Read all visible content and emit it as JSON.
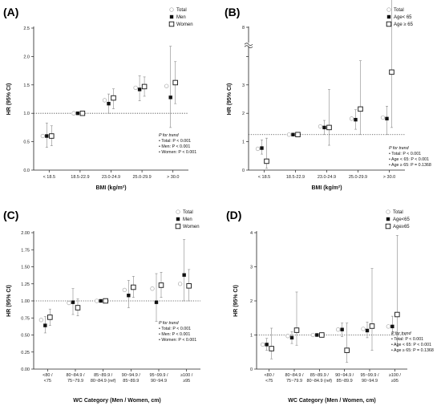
{
  "chart_data": [
    {
      "panel": "(A)",
      "type": "scatter",
      "ylabel": "HR (95% CI)",
      "xlabel": "BMI (kg/m²)",
      "ylim": [
        0,
        2.5
      ],
      "yticks": [
        "0.0",
        "0.5",
        "1.0",
        "1.5",
        "2.0",
        "2.5"
      ],
      "axis_break": false,
      "categories": [
        "< 18.5",
        "18.5-22.9",
        "23.0-24.9",
        "25.0-29.9",
        "> 30.0"
      ],
      "reference_line": 1.0,
      "legend": [
        "Total",
        "Men",
        "Women"
      ],
      "series": [
        {
          "name": "Total",
          "marker": "open-circle",
          "values": [
            0.6,
            1.0,
            1.23,
            1.45,
            1.48
          ],
          "lower": [
            null,
            null,
            null,
            null,
            null
          ],
          "upper": [
            null,
            null,
            null,
            null,
            null
          ]
        },
        {
          "name": "Men",
          "marker": "filled-square",
          "values": [
            0.6,
            1.0,
            1.17,
            1.42,
            1.28
          ],
          "lower": [
            0.4,
            null,
            1.0,
            1.22,
            0.75
          ],
          "upper": [
            0.83,
            null,
            1.34,
            1.66,
            2.18
          ]
        },
        {
          "name": "Women",
          "marker": "open-square",
          "values": [
            0.6,
            1.0,
            1.27,
            1.47,
            1.54
          ],
          "lower": [
            0.43,
            null,
            1.08,
            1.3,
            1.17
          ],
          "upper": [
            0.78,
            null,
            1.43,
            1.64,
            1.91
          ]
        }
      ],
      "annotation": {
        "title": "P for trend",
        "lines": [
          "• Total: P < 0.001",
          "• Men: P < 0.001",
          "• Women: P < 0.001"
        ]
      }
    },
    {
      "panel": "(B)",
      "type": "scatter",
      "ylabel": "HR (95% CI)",
      "xlabel": "BMI (kg/m²)",
      "ylim": [
        0,
        4
      ],
      "yticks": [
        "0",
        "1",
        "2",
        "3",
        "",
        "8"
      ],
      "axis_break": true,
      "categories": [
        "< 18.5",
        "18.5-22.9",
        "23.0-24.9",
        "25.0-29.9",
        "> 30.0"
      ],
      "reference_line": 1.0,
      "legend": [
        "Total",
        "Age< 65",
        "Age ≥ 65"
      ],
      "series": [
        {
          "name": "Total",
          "marker": "open-circle",
          "values": [
            0.6,
            1.0,
            1.23,
            1.45,
            1.48
          ],
          "lower": [
            null,
            null,
            null,
            null,
            null
          ],
          "upper": [
            null,
            null,
            null,
            null,
            null
          ]
        },
        {
          "name": "Age< 65",
          "marker": "filled-square",
          "values": [
            0.62,
            1.0,
            1.2,
            1.42,
            1.45
          ],
          "lower": [
            0.45,
            null,
            1.0,
            1.15,
            1.0
          ],
          "upper": [
            0.85,
            null,
            1.4,
            1.7,
            1.8
          ]
        },
        {
          "name": "Age ≥ 65",
          "marker": "open-square",
          "values": [
            0.25,
            1.0,
            1.2,
            1.72,
            2.76
          ],
          "lower": [
            0.05,
            null,
            0.7,
            1.0,
            1.2
          ],
          "upper": [
            0.9,
            null,
            2.27,
            3.08,
            5.0
          ]
        }
      ],
      "annotation": {
        "title": "P for trend",
        "lines": [
          "• Total: P < 0.001",
          "• Age < 65: P < 0.001",
          "• Age ≥ 65: P = 0.1368"
        ]
      }
    },
    {
      "panel": "(C)",
      "type": "scatter",
      "ylabel": "HR (95% CI)",
      "xlabel": "WC Category (Men / Women, cm)",
      "ylim": [
        0,
        2.0
      ],
      "yticks": [
        "0.00",
        "0.25",
        "0.50",
        "0.75",
        "1.00",
        "1.25",
        "1.50",
        "1.75",
        "2.00"
      ],
      "axis_break": false,
      "categories": [
        "<80 / <75",
        "80~84.9 / 75~79.9",
        "85~89.9 / 80~84.9 (ref)",
        "90~94.9 / 85~89.9",
        "95~99.9 / 90~94.9",
        "≥100 / ≥95"
      ],
      "reference_line": 1.0,
      "legend": [
        "Total",
        "Men",
        "Women"
      ],
      "series": [
        {
          "name": "Total",
          "marker": "open-circle",
          "values": [
            0.72,
            0.97,
            1.0,
            1.16,
            1.18,
            1.25
          ],
          "lower": [
            null,
            null,
            null,
            null,
            null,
            null
          ],
          "upper": [
            null,
            null,
            null,
            null,
            null,
            null
          ]
        },
        {
          "name": "Men",
          "marker": "filled-square",
          "values": [
            0.64,
            0.98,
            1.0,
            1.08,
            0.98,
            1.38
          ],
          "lower": [
            0.53,
            0.8,
            null,
            0.9,
            0.7,
            1.0
          ],
          "upper": [
            0.77,
            1.18,
            null,
            1.3,
            1.4,
            1.9
          ]
        },
        {
          "name": "Women",
          "marker": "open-square",
          "values": [
            0.76,
            0.9,
            1.0,
            1.2,
            1.23,
            1.22
          ],
          "lower": [
            0.64,
            0.78,
            null,
            1.05,
            1.05,
            1.0
          ],
          "upper": [
            0.88,
            1.03,
            null,
            1.36,
            1.42,
            1.46
          ]
        }
      ],
      "annotation": {
        "title": "P for trend",
        "lines": [
          "• Total: P < 0.001",
          "• Men: P < 0.001",
          "• Women: P < 0.001"
        ]
      }
    },
    {
      "panel": "(D)",
      "type": "scatter",
      "ylabel": "HR (95% CI)",
      "xlabel": "WC Category (Men / Women, cm)",
      "ylim": [
        0,
        4
      ],
      "yticks": [
        "0",
        "1",
        "2",
        "3",
        "4"
      ],
      "axis_break": false,
      "categories": [
        "<80 / <75",
        "80~84.9 / 75~79.9",
        "85~89.9 / 80~84.9 (ref)",
        "90~94.9 / 85~89.9",
        "95~99.9 / 90~94.9",
        "≥100 / ≥95"
      ],
      "reference_line": 1.0,
      "legend": [
        "Total",
        "Age<65",
        "Age≥65"
      ],
      "series": [
        {
          "name": "Total",
          "marker": "open-circle",
          "values": [
            0.72,
            0.97,
            1.0,
            1.16,
            1.18,
            1.25
          ],
          "lower": [
            null,
            null,
            null,
            null,
            null,
            null
          ],
          "upper": [
            null,
            null,
            null,
            null,
            null,
            null
          ]
        },
        {
          "name": "Age<65",
          "marker": "filled-square",
          "values": [
            0.72,
            0.92,
            1.0,
            1.16,
            1.13,
            1.25
          ],
          "lower": [
            0.55,
            0.75,
            null,
            0.95,
            0.92,
            1.0
          ],
          "upper": [
            0.9,
            1.1,
            null,
            1.35,
            1.38,
            1.55
          ]
        },
        {
          "name": "Age≥65",
          "marker": "open-square",
          "values": [
            0.6,
            1.14,
            1.0,
            0.55,
            1.26,
            1.6
          ],
          "lower": [
            0.3,
            0.7,
            null,
            0.2,
            0.55,
            0.68
          ],
          "upper": [
            1.2,
            2.26,
            null,
            1.35,
            2.95,
            3.92
          ]
        }
      ],
      "annotation": {
        "title": "P for trend",
        "lines": [
          "• Total:     P < 0.001",
          "• Age < 65: P < 0.001",
          "• Age ≥ 65: P = 0.1368"
        ]
      }
    }
  ]
}
